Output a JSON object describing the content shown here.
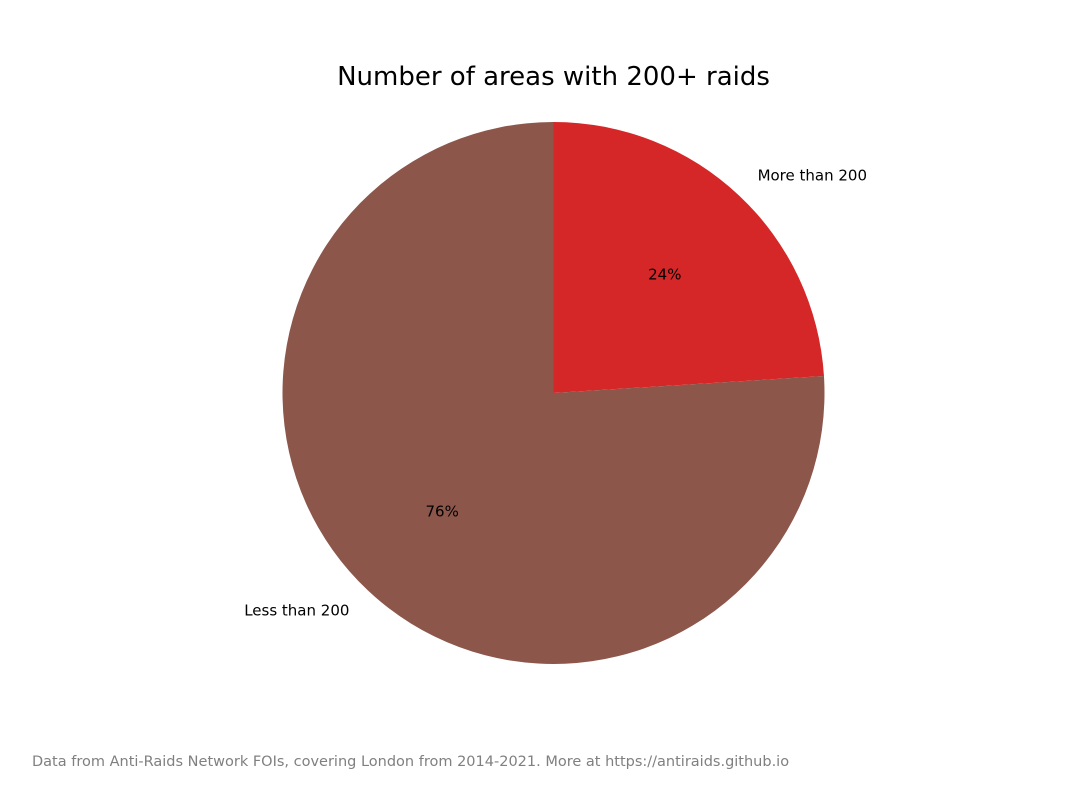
{
  "chart_data": {
    "type": "pie",
    "title": "Number of areas with 200+ raids",
    "slices": [
      {
        "label": "More than 200",
        "value": 24,
        "pct_label": "24%",
        "color": "#d62728"
      },
      {
        "label": "Less than 200",
        "value": 76,
        "pct_label": "76%",
        "color": "#8c564b"
      }
    ],
    "start_angle": "top",
    "direction": "clockwise",
    "legend": "none"
  },
  "footnote": "Data from Anti-Raids Network FOIs, covering London from 2014-2021. More at https://antiraids.github.io"
}
